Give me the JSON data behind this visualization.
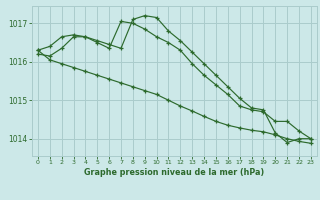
{
  "background_color": "#cce8e8",
  "grid_color": "#aacccc",
  "line_color": "#2d6a2d",
  "title": "Graphe pression niveau de la mer (hPa)",
  "xlim": [
    -0.5,
    23.5
  ],
  "ylim": [
    1013.55,
    1017.45
  ],
  "yticks": [
    1014,
    1015,
    1016,
    1017
  ],
  "xticks": [
    0,
    1,
    2,
    3,
    4,
    5,
    6,
    7,
    8,
    9,
    10,
    11,
    12,
    13,
    14,
    15,
    16,
    17,
    18,
    19,
    20,
    21,
    22,
    23
  ],
  "series": [
    [
      1016.3,
      1016.4,
      1016.65,
      1016.7,
      1016.65,
      1016.55,
      1016.45,
      1016.35,
      1017.1,
      1017.2,
      1017.15,
      1016.8,
      1016.55,
      1016.25,
      1015.95,
      1015.65,
      1015.35,
      1015.05,
      1014.8,
      1014.75,
      1014.15,
      1013.9,
      1014.0,
      1014.0
    ],
    [
      1016.2,
      1016.15,
      1016.35,
      1016.65,
      1016.65,
      1016.5,
      1016.35,
      1017.05,
      1017.0,
      1016.85,
      1016.65,
      1016.5,
      1016.3,
      1015.95,
      1015.65,
      1015.4,
      1015.15,
      1014.85,
      1014.75,
      1014.7,
      1014.45,
      1014.45,
      1014.2,
      1014.0
    ],
    [
      1016.3,
      1016.05,
      1015.95,
      1015.85,
      1015.75,
      1015.65,
      1015.55,
      1015.45,
      1015.35,
      1015.25,
      1015.15,
      1015.0,
      1014.85,
      1014.72,
      1014.58,
      1014.45,
      1014.35,
      1014.28,
      1014.22,
      1014.18,
      1014.1,
      1014.0,
      1013.93,
      1013.88
    ]
  ]
}
